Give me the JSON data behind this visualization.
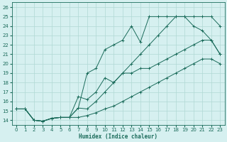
{
  "xlabel": "Humidex (Indice chaleur)",
  "bg_color": "#d6f0f0",
  "grid_color": "#b0d8d4",
  "line_color": "#1a6b5a",
  "xlim": [
    -0.5,
    23.5
  ],
  "ylim": [
    13.5,
    26.5
  ],
  "xticks": [
    0,
    1,
    2,
    3,
    4,
    5,
    6,
    7,
    8,
    9,
    10,
    11,
    12,
    13,
    14,
    15,
    16,
    17,
    18,
    19,
    20,
    21,
    22,
    23
  ],
  "yticks": [
    14,
    15,
    16,
    17,
    18,
    19,
    20,
    21,
    22,
    23,
    24,
    25,
    26
  ],
  "line1_x": [
    0,
    1,
    2,
    3,
    4,
    5,
    6,
    7,
    8,
    9,
    10,
    11,
    12,
    13,
    14,
    15,
    16,
    17,
    18,
    19,
    20,
    21,
    22,
    23
  ],
  "line1_y": [
    15.2,
    15.2,
    14.0,
    13.9,
    14.2,
    14.3,
    14.3,
    14.3,
    14.5,
    14.8,
    15.2,
    15.5,
    16.0,
    16.5,
    17.0,
    17.5,
    18.0,
    18.5,
    19.0,
    19.5,
    20.0,
    20.5,
    20.5,
    20.0
  ],
  "line2_x": [
    0,
    1,
    2,
    3,
    4,
    5,
    6,
    7,
    8,
    9,
    10,
    11,
    12,
    13,
    14,
    15,
    16,
    17,
    18,
    19,
    20,
    21,
    22,
    23
  ],
  "line2_y": [
    15.2,
    15.2,
    14.0,
    13.9,
    14.2,
    14.3,
    14.3,
    16.5,
    16.2,
    17.0,
    18.5,
    18.0,
    19.0,
    19.0,
    19.5,
    19.5,
    20.0,
    20.5,
    21.0,
    21.5,
    22.0,
    22.5,
    22.5,
    21.0
  ],
  "line3_x": [
    0,
    1,
    2,
    3,
    4,
    5,
    6,
    7,
    8,
    9,
    10,
    11,
    12,
    13,
    14,
    15,
    16,
    17,
    18,
    19,
    20,
    21,
    22,
    23
  ],
  "line3_y": [
    15.2,
    15.2,
    14.0,
    13.9,
    14.2,
    14.3,
    14.3,
    15.3,
    19.0,
    19.5,
    21.5,
    22.0,
    22.5,
    24.0,
    22.3,
    25.0,
    25.0,
    25.0,
    25.0,
    25.0,
    24.0,
    23.5,
    22.5,
    21.0
  ],
  "line4_x": [
    0,
    1,
    2,
    3,
    4,
    5,
    6,
    7,
    8,
    9,
    10,
    11,
    12,
    13,
    14,
    15,
    16,
    17,
    18,
    19,
    20,
    21,
    22,
    23
  ],
  "line4_y": [
    15.2,
    15.2,
    14.0,
    13.9,
    14.2,
    14.3,
    14.3,
    15.3,
    15.2,
    16.0,
    17.0,
    18.0,
    19.0,
    20.0,
    21.0,
    22.0,
    23.0,
    24.0,
    25.0,
    25.0,
    25.0,
    25.0,
    25.0,
    24.0
  ]
}
